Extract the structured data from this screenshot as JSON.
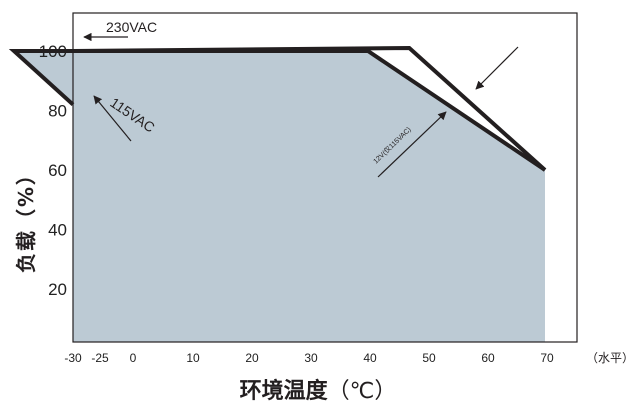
{
  "chart_data": {
    "type": "area",
    "xlabel": "环境温度",
    "xlabel_unit": "（℃）",
    "ylabel": "负载（%）",
    "x_unit_note": "（水平）",
    "xlim": [
      -30,
      75
    ],
    "ylim": [
      0,
      112
    ],
    "x_ticks": [
      "-30",
      "-25",
      "0",
      "10",
      "20",
      "30",
      "40",
      "50",
      "60",
      "70"
    ],
    "y_ticks": [
      "20",
      "40",
      "60",
      "80",
      "100"
    ],
    "series": [
      {
        "name": "230VAC",
        "x": [
          -30,
          47,
          70
        ],
        "y": [
          100,
          101,
          60
        ]
      },
      {
        "name": "115VAC",
        "x": [
          -30,
          -20,
          40,
          70
        ],
        "y": [
          82,
          100,
          100,
          60
        ]
      }
    ],
    "annotations": [
      {
        "text": "230VAC"
      },
      {
        "text": "115VAC"
      },
      {
        "text": "12V(仅115VAC)"
      }
    ],
    "colors": {
      "fill": "#bccad4",
      "line": "#231f20"
    }
  }
}
